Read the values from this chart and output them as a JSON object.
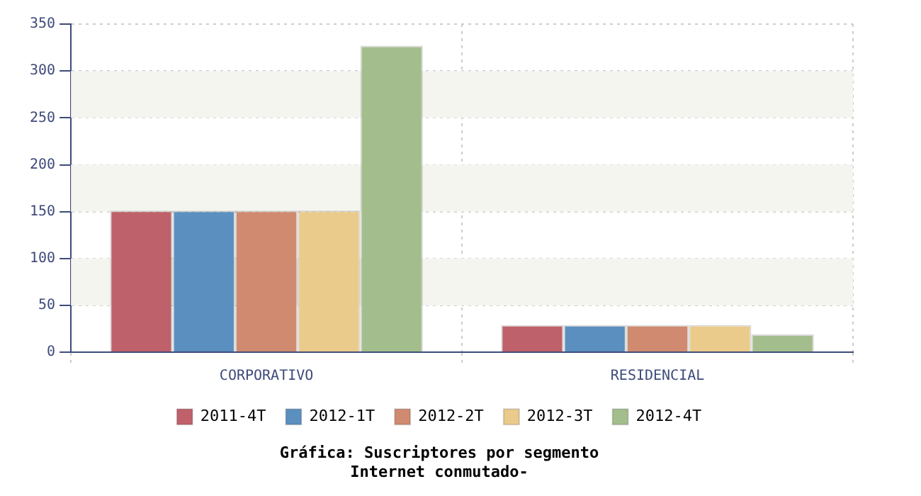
{
  "chart_data": {
    "type": "bar",
    "title": "Gráfica: Suscriptores por segmento",
    "subtitle": "Internet conmutado-",
    "categories": [
      "CORPORATIVO",
      "RESIDENCIAL"
    ],
    "series": [
      {
        "name": "2011-4T",
        "color": "#bf616a",
        "values": [
          151,
          29
        ]
      },
      {
        "name": "2012-1T",
        "color": "#5b8fbf",
        "values": [
          151,
          29
        ]
      },
      {
        "name": "2012-2T",
        "color": "#d08a70",
        "values": [
          151,
          29
        ]
      },
      {
        "name": "2012-3T",
        "color": "#ebcb8b",
        "values": [
          151,
          29
        ]
      },
      {
        "name": "2012-4T",
        "color": "#a3be8c",
        "values": [
          327,
          19
        ]
      }
    ],
    "ylim": [
      0,
      350
    ],
    "yticks": [
      0,
      50,
      100,
      150,
      200,
      250,
      300,
      350
    ],
    "grid": true,
    "legend": "bottom"
  }
}
